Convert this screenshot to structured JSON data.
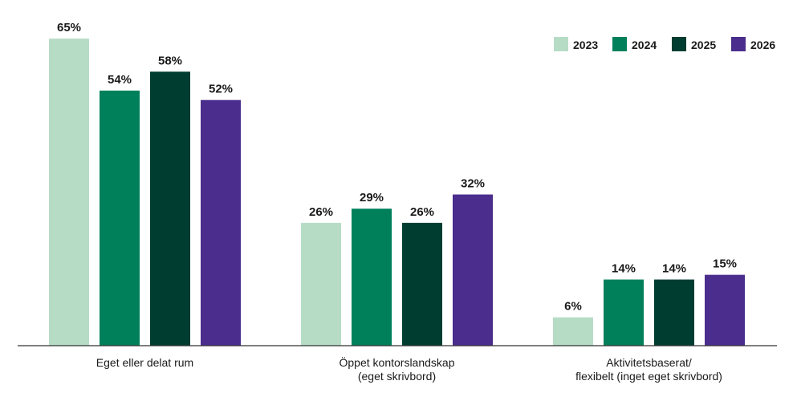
{
  "chart_data": {
    "type": "bar",
    "title": "",
    "xlabel": "",
    "ylabel": "",
    "ylim": [
      0,
      70
    ],
    "grid": false,
    "legend_position": "top-right",
    "categories": [
      [
        "Eget eller delat rum"
      ],
      [
        "Öppet kontorslandskap",
        "(eget skrivbord)"
      ],
      [
        "Aktivitetsbaserat/",
        "flexibelt (inget eget skrivbord)"
      ]
    ],
    "series": [
      {
        "name": "2023",
        "color": "#b7dcc6",
        "values": [
          65,
          26,
          6
        ],
        "labels": [
          "65%",
          "26%",
          "6%"
        ]
      },
      {
        "name": "2024",
        "color": "#00805a",
        "values": [
          54,
          29,
          14
        ],
        "labels": [
          "54%",
          "29%",
          "14%"
        ]
      },
      {
        "name": "2025",
        "color": "#003d31",
        "values": [
          58,
          26,
          14
        ],
        "labels": [
          "58%",
          "26%",
          "14%"
        ]
      },
      {
        "name": "2026",
        "color": "#4a2d8c",
        "values": [
          52,
          32,
          15
        ],
        "labels": [
          "52%",
          "32%",
          "15%"
        ]
      }
    ],
    "axis_color": "#333333"
  }
}
